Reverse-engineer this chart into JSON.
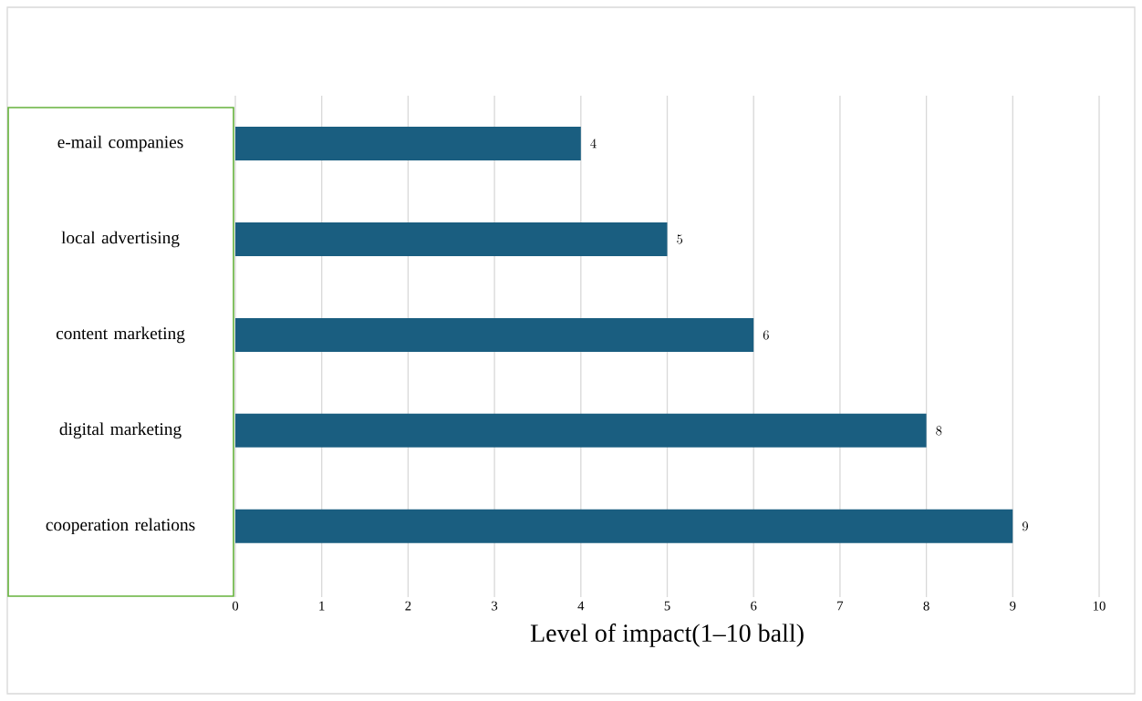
{
  "chart_data": {
    "type": "bar",
    "orientation": "horizontal",
    "xlabel": "Level of impact(1–10 ball)",
    "categories": [
      "e-mail companies",
      "local advertising",
      "content marketing",
      "digital marketing",
      "cooperation relations"
    ],
    "values": [
      4,
      5,
      6,
      8,
      9
    ],
    "color": "#1a5e80",
    "xlim": [
      0,
      10
    ],
    "xticks": [
      0,
      1,
      2,
      3,
      4,
      5,
      6,
      7,
      8,
      9,
      10
    ],
    "grid": "x",
    "data_labels": true
  }
}
